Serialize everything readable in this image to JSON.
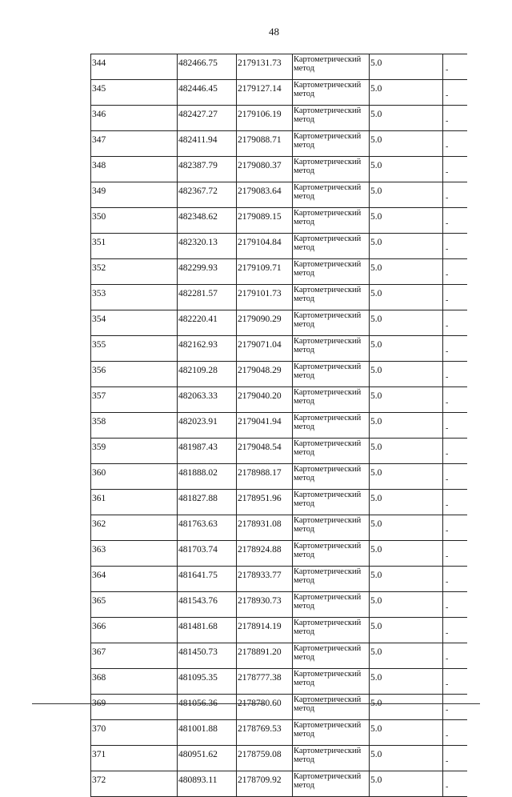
{
  "page_number": "48",
  "table": {
    "rows": [
      [
        "344",
        "482466.75",
        "2179131.73",
        "Картометрический метод",
        "5.0",
        "-"
      ],
      [
        "345",
        "482446.45",
        "2179127.14",
        "Картометрический метод",
        "5.0",
        "-"
      ],
      [
        "346",
        "482427.27",
        "2179106.19",
        "Картометрический метод",
        "5.0",
        "-"
      ],
      [
        "347",
        "482411.94",
        "2179088.71",
        "Картометрический метод",
        "5.0",
        "-"
      ],
      [
        "348",
        "482387.79",
        "2179080.37",
        "Картометрический метод",
        "5.0",
        "-"
      ],
      [
        "349",
        "482367.72",
        "2179083.64",
        "Картометрический метод",
        "5.0",
        "-"
      ],
      [
        "350",
        "482348.62",
        "2179089.15",
        "Картометрический метод",
        "5.0",
        "-"
      ],
      [
        "351",
        "482320.13",
        "2179104.84",
        "Картометрический метод",
        "5.0",
        "-"
      ],
      [
        "352",
        "482299.93",
        "2179109.71",
        "Картометрический метод",
        "5.0",
        "-"
      ],
      [
        "353",
        "482281.57",
        "2179101.73",
        "Картометрический метод",
        "5.0",
        "-"
      ],
      [
        "354",
        "482220.41",
        "2179090.29",
        "Картометрический метод",
        "5.0",
        "-"
      ],
      [
        "355",
        "482162.93",
        "2179071.04",
        "Картометрический метод",
        "5.0",
        "-"
      ],
      [
        "356",
        "482109.28",
        "2179048.29",
        "Картометрический метод",
        "5.0",
        "-"
      ],
      [
        "357",
        "482063.33",
        "2179040.20",
        "Картометрический метод",
        "5.0",
        "-"
      ],
      [
        "358",
        "482023.91",
        "2179041.94",
        "Картометрический метод",
        "5.0",
        "-"
      ],
      [
        "359",
        "481987.43",
        "2179048.54",
        "Картометрический метод",
        "5.0",
        "-"
      ],
      [
        "360",
        "481888.02",
        "2178988.17",
        "Картометрический метод",
        "5.0",
        "-"
      ],
      [
        "361",
        "481827.88",
        "2178951.96",
        "Картометрический метод",
        "5.0",
        "-"
      ],
      [
        "362",
        "481763.63",
        "2178931.08",
        "Картометрический метод",
        "5.0",
        "-"
      ],
      [
        "363",
        "481703.74",
        "2178924.88",
        "Картометрический метод",
        "5.0",
        "-"
      ],
      [
        "364",
        "481641.75",
        "2178933.77",
        "Картометрический метод",
        "5.0",
        "-"
      ],
      [
        "365",
        "481543.76",
        "2178930.73",
        "Картометрический метод",
        "5.0",
        "-"
      ],
      [
        "366",
        "481481.68",
        "2178914.19",
        "Картометрический метод",
        "5.0",
        "-"
      ],
      [
        "367",
        "481450.73",
        "2178891.20",
        "Картометрический метод",
        "5.0",
        "-"
      ],
      [
        "368",
        "481095.35",
        "2178777.38",
        "Картометрический метод",
        "5.0",
        "-"
      ],
      [
        "369",
        "481056.36",
        "2178780.60",
        "Картометрический метод",
        "5.0",
        "-"
      ],
      [
        "370",
        "481001.88",
        "2178769.53",
        "Картометрический метод",
        "5.0",
        "-"
      ],
      [
        "371",
        "480951.62",
        "2178759.08",
        "Картометрический метод",
        "5.0",
        "-"
      ],
      [
        "372",
        "480893.11",
        "2178709.92",
        "Картометрический метод",
        "5.0",
        "-"
      ]
    ]
  }
}
